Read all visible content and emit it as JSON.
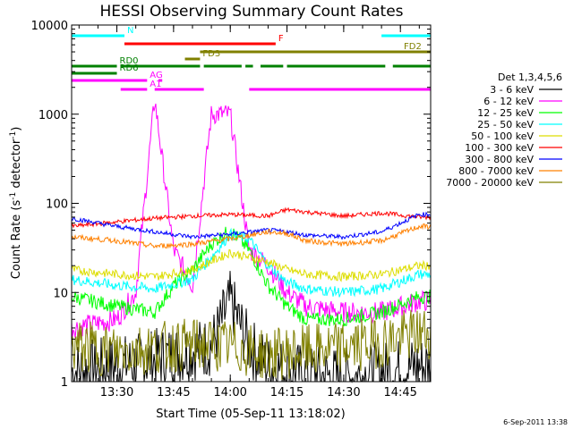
{
  "chart_data": {
    "type": "line",
    "title": "HESSI Observing Summary Count Rates",
    "xlabel": "Start Time (05-Sep-11 13:18:02)",
    "ylabel_base": "Count Rate (s",
    "ylabel_sup1": "-1",
    "ylabel_mid": " detector",
    "ylabel_sup2": "-1",
    "ylabel_end": ")",
    "y_scale": "log",
    "xlim": [
      "13:18:02",
      "14:53:00"
    ],
    "ylim": [
      1,
      10000
    ],
    "x_ticks": [
      "13:30",
      "13:45",
      "14:00",
      "14:15",
      "14:30",
      "14:45"
    ],
    "y_ticks": [
      "1",
      "10",
      "100",
      "1000",
      "10000"
    ],
    "legend_title": "Det 1,3,4,5,6",
    "legend_placement": "right",
    "series": [
      {
        "name": "3 - 6 keV",
        "color": "#000000",
        "x": [
          "13:18",
          "13:35",
          "13:45",
          "13:55",
          "14:00",
          "14:05",
          "14:10",
          "14:20",
          "14:30",
          "14:40",
          "14:50"
        ],
        "y": [
          1.3,
          1.6,
          2.0,
          2.5,
          8,
          2.5,
          1.5,
          1.2,
          1.1,
          1.3,
          1.5
        ]
      },
      {
        "name": "6 - 12 keV",
        "color": "#ff00ff",
        "x": [
          "13:18",
          "13:30",
          "13:35",
          "13:40",
          "13:45",
          "13:50",
          "13:55",
          "14:00",
          "14:05",
          "14:10",
          "14:15",
          "14:20",
          "14:30",
          "14:40",
          "14:50"
        ],
        "y": [
          4,
          5,
          10,
          1500,
          30,
          12,
          1000,
          1000,
          30,
          20,
          10,
          7,
          6,
          6,
          8
        ]
      },
      {
        "name": "12 - 25 keV",
        "color": "#00ff00",
        "x": [
          "13:18",
          "13:30",
          "13:40",
          "13:45",
          "13:50",
          "13:55",
          "14:00",
          "14:05",
          "14:10",
          "14:15",
          "14:20",
          "14:30",
          "14:40",
          "14:50"
        ],
        "y": [
          9,
          7,
          6,
          12,
          18,
          35,
          50,
          30,
          12,
          7,
          5,
          5,
          6,
          9
        ]
      },
      {
        "name": "25 - 50 keV",
        "color": "#00ffff",
        "x": [
          "13:18",
          "13:30",
          "13:40",
          "13:50",
          "13:55",
          "14:00",
          "14:05",
          "14:10",
          "14:15",
          "14:20",
          "14:30",
          "14:40",
          "14:50"
        ],
        "y": [
          14,
          12,
          11,
          14,
          25,
          45,
          40,
          20,
          13,
          11,
          10,
          11,
          16
        ]
      },
      {
        "name": "50 - 100 keV",
        "color": "#dddd00",
        "x": [
          "13:18",
          "13:30",
          "13:40",
          "13:50",
          "14:00",
          "14:10",
          "14:15",
          "14:20",
          "14:30",
          "14:40",
          "14:50"
        ],
        "y": [
          18,
          16,
          15,
          18,
          28,
          22,
          18,
          16,
          15,
          16,
          20
        ]
      },
      {
        "name": "100 - 300 keV",
        "color": "#ff0000",
        "x": [
          "13:18",
          "13:30",
          "13:40",
          "13:50",
          "14:00",
          "14:10",
          "14:15",
          "14:20",
          "14:30",
          "14:40",
          "14:50"
        ],
        "y": [
          55,
          62,
          68,
          72,
          75,
          72,
          85,
          80,
          72,
          78,
          70
        ]
      },
      {
        "name": "300 - 800 keV",
        "color": "#0000ff",
        "x": [
          "13:18",
          "13:30",
          "13:40",
          "13:50",
          "14:00",
          "14:10",
          "14:15",
          "14:20",
          "14:30",
          "14:40",
          "14:50"
        ],
        "y": [
          68,
          55,
          48,
          42,
          45,
          50,
          48,
          44,
          42,
          48,
          75
        ]
      },
      {
        "name": "800 - 7000 keV",
        "color": "#ff8000",
        "x": [
          "13:18",
          "13:30",
          "13:40",
          "13:50",
          "14:00",
          "14:10",
          "14:15",
          "14:20",
          "14:30",
          "14:40",
          "14:50"
        ],
        "y": [
          42,
          38,
          33,
          35,
          40,
          48,
          46,
          38,
          35,
          38,
          55
        ]
      },
      {
        "name": "7000 - 20000 keV",
        "color": "#808000",
        "x": [
          "13:18",
          "13:30",
          "13:40",
          "13:50",
          "14:00",
          "14:10",
          "14:20",
          "14:30",
          "14:40",
          "14:50"
        ],
        "y": [
          2.5,
          2.2,
          2.4,
          2.6,
          2.5,
          2.0,
          2.2,
          2.4,
          2.8,
          3.5
        ]
      }
    ],
    "flags": [
      {
        "label": "N",
        "color": "#00ffff",
        "segments": [
          [
            "13:18",
            "13:32"
          ],
          [
            "14:40",
            "14:53"
          ]
        ]
      },
      {
        "label": "F",
        "color": "#ff0000",
        "segments": [
          [
            "13:32",
            "14:12"
          ]
        ]
      },
      {
        "label": "FD2",
        "color": "#808000",
        "segments": [
          [
            "13:52",
            "14:53"
          ]
        ]
      },
      {
        "label": "FD3",
        "color": "#808000",
        "segments": [
          [
            "13:48",
            "13:52"
          ]
        ]
      },
      {
        "label": "RD0",
        "color": "#008000",
        "segments": [
          [
            "13:18",
            "13:30"
          ],
          [
            "13:31",
            "13:52"
          ],
          [
            "13:53",
            "14:03"
          ],
          [
            "14:04",
            "14:06"
          ],
          [
            "14:08",
            "14:14"
          ],
          [
            "14:15",
            "14:41"
          ],
          [
            "14:43",
            "14:53"
          ]
        ]
      },
      {
        "label": "RD6",
        "color": "#008000",
        "segments": [
          [
            "13:18",
            "13:30"
          ]
        ]
      },
      {
        "label": "AG",
        "color": "#ff00ff",
        "segments": [
          [
            "13:18",
            "13:38"
          ],
          [
            "13:41",
            "13:42"
          ]
        ]
      },
      {
        "label": "A1",
        "color": "#ff00ff",
        "segments": [
          [
            "13:31",
            "13:38"
          ],
          [
            "13:40",
            "13:53"
          ],
          [
            "14:05",
            "14:53"
          ]
        ]
      }
    ]
  },
  "timestamp": "6-Sep-2011 13:38"
}
